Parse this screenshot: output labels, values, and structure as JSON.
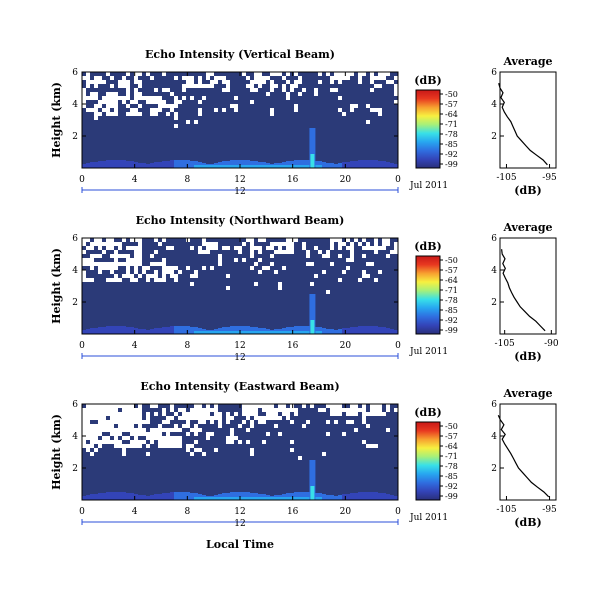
{
  "figure": {
    "xlabel": "Local Time",
    "date_label": "Jul 2011",
    "colorbar_unit": "(dB)",
    "colorbar_ticks": [
      "-50",
      "-57",
      "-64",
      "-71",
      "-78",
      "-85",
      "-92",
      "-99"
    ],
    "colors": {
      "background": "#2b3a78",
      "white_gaps": "#ffffff",
      "axis": "#000000",
      "timeline": "#2b4fd8",
      "colormap": [
        "#2a2f7a",
        "#3344b8",
        "#2f6ee0",
        "#27a6f0",
        "#38e0e8",
        "#a6f07a",
        "#f7f040",
        "#f7a030",
        "#e83820",
        "#c81818"
      ]
    }
  },
  "chart_data": [
    {
      "type": "heatmap",
      "title": "Echo Intensity (Vertical Beam)",
      "ylabel": "Height (km)",
      "x_ticks": [
        "0",
        "4",
        "8",
        "12",
        "16",
        "20",
        "0"
      ],
      "y_ticks": [
        "6",
        "4",
        "2"
      ],
      "date_tick": "12",
      "xlim": [
        0,
        24
      ],
      "ylim": [
        0,
        6
      ],
      "color_range_db": [
        -99,
        -50
      ],
      "profile": {
        "title": "Average",
        "xlabel": "(dB)",
        "x_ticks": [
          "-105",
          "-95"
        ],
        "y_ticks": [
          "6",
          "4",
          "2"
        ],
        "heights_km": [
          0.2,
          0.5,
          0.8,
          1.1,
          1.4,
          1.7,
          2.0,
          2.3,
          2.6,
          2.9,
          3.2,
          3.5,
          3.8,
          4.1,
          4.4,
          4.7,
          5.0,
          5.3
        ],
        "values_db": [
          -95.5,
          -96.5,
          -98,
          -99.5,
          -100.5,
          -101.5,
          -102.5,
          -103,
          -103.5,
          -104,
          -104.8,
          -105.5,
          -106,
          -105.5,
          -106.3,
          -105.8,
          -106.5,
          -106.8
        ]
      }
    },
    {
      "type": "heatmap",
      "title": "Echo Intensity (Northward Beam)",
      "ylabel": "Height (km)",
      "x_ticks": [
        "0",
        "4",
        "8",
        "12",
        "16",
        "20",
        "0"
      ],
      "y_ticks": [
        "6",
        "4",
        "2"
      ],
      "date_tick": "12",
      "xlim": [
        0,
        24
      ],
      "ylim": [
        0,
        6
      ],
      "color_range_db": [
        -99,
        -50
      ],
      "profile": {
        "title": "Average",
        "xlabel": "(dB)",
        "x_ticks": [
          "-105",
          "-90"
        ],
        "y_ticks": [
          "6",
          "4",
          "2"
        ],
        "heights_km": [
          0.2,
          0.5,
          0.8,
          1.1,
          1.4,
          1.7,
          2.0,
          2.3,
          2.6,
          2.9,
          3.2,
          3.5,
          3.8,
          4.1,
          4.4,
          4.7,
          5.0,
          5.3
        ],
        "values_db": [
          -92,
          -93.5,
          -95,
          -97,
          -98.5,
          -100,
          -101,
          -102,
          -102.8,
          -103.5,
          -104,
          -104.8,
          -105.5,
          -104.8,
          -105.6,
          -104.9,
          -105.8,
          -106
        ]
      }
    },
    {
      "type": "heatmap",
      "title": "Echo Intensity (Eastward Beam)",
      "ylabel": "Height (km)",
      "x_ticks": [
        "0",
        "4",
        "8",
        "12",
        "16",
        "20",
        "0"
      ],
      "y_ticks": [
        "6",
        "4",
        "2"
      ],
      "date_tick": "12",
      "xlim": [
        0,
        24
      ],
      "ylim": [
        0,
        6
      ],
      "color_range_db": [
        -99,
        -50
      ],
      "profile": {
        "title": "Average",
        "xlabel": "(dB)",
        "x_ticks": [
          "-105",
          "-95"
        ],
        "y_ticks": [
          "6",
          "4",
          "2"
        ],
        "heights_km": [
          0.2,
          0.5,
          0.8,
          1.1,
          1.4,
          1.7,
          2.0,
          2.3,
          2.6,
          2.9,
          3.2,
          3.5,
          3.8,
          4.1,
          4.4,
          4.7,
          5.0,
          5.3
        ],
        "values_db": [
          -95.2,
          -96.3,
          -97.8,
          -99.2,
          -100.2,
          -101.2,
          -102.2,
          -102.8,
          -103.4,
          -104,
          -104.7,
          -105.4,
          -106,
          -105.3,
          -106.2,
          -105.6,
          -106.4,
          -106.9
        ]
      }
    }
  ]
}
